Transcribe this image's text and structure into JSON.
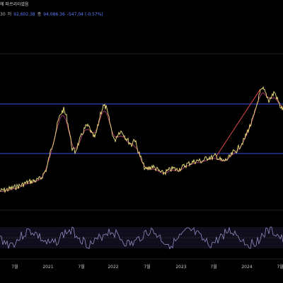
{
  "header": {
    "row1": "에 파르리아였음",
    "row2_prefix": "30",
    "high_label": "저",
    "high_value": "92,602.38",
    "close_label": "종",
    "close_value": "94,086.36",
    "change": "-547.04 (-0.57%)"
  },
  "colors": {
    "background": "#000000",
    "price_line": "#f2e27a",
    "ma_line": "#d04a8a",
    "support_resistance": "#3d4fe0",
    "trend_line": "#e04848",
    "oscillator": "#8e8ebf"
  },
  "chart_data": {
    "type": "line",
    "title": "",
    "xlabel": "",
    "ylabel": "",
    "x_tick_labels": [
      "7월",
      "2021",
      "7월",
      "2022",
      "7월",
      "2023",
      "7월",
      "2024",
      "7월"
    ],
    "x_tick_index": [
      21,
      68,
      115,
      160,
      208,
      256,
      302,
      349,
      396
    ],
    "series": [
      {
        "role": "price",
        "x": [
          0,
          10,
          20,
          30,
          38,
          46,
          52,
          58,
          62,
          66,
          70,
          74,
          78,
          82,
          86,
          90,
          94,
          98,
          102,
          106,
          110,
          114,
          118,
          122,
          126,
          130,
          134,
          138,
          142,
          146,
          150,
          154,
          158,
          162,
          166,
          170,
          174,
          178,
          182,
          186,
          190,
          194,
          198,
          202,
          206,
          210,
          215,
          220,
          225,
          230,
          235,
          240,
          245,
          250,
          255,
          260,
          265,
          270,
          275,
          280,
          285,
          290,
          295,
          300,
          305,
          310,
          315,
          320,
          325,
          330,
          335,
          340,
          345,
          350,
          355,
          360,
          365,
          368,
          372,
          376,
          380,
          384,
          388,
          392,
          396,
          400
        ],
        "y": [
          270,
          268,
          265,
          262,
          258,
          256,
          255,
          252,
          245,
          238,
          220,
          205,
          190,
          172,
          160,
          155,
          165,
          185,
          210,
          215,
          205,
          195,
          185,
          178,
          180,
          190,
          195,
          180,
          160,
          150,
          152,
          168,
          185,
          200,
          190,
          185,
          188,
          195,
          200,
          205,
          195,
          210,
          220,
          232,
          240,
          238,
          235,
          238,
          242,
          245,
          243,
          240,
          238,
          240,
          238,
          235,
          232,
          230,
          228,
          227,
          228,
          225,
          222,
          223,
          220,
          225,
          228,
          226,
          222,
          215,
          212,
          205,
          198,
          185,
          175,
          160,
          140,
          130,
          126,
          133,
          142,
          136,
          130,
          140,
          150,
          155
        ]
      }
    ],
    "horizontal_levels_y": [
      147,
      217
    ],
    "trend_line": {
      "x": [
        305,
        368
      ],
      "y": [
        222,
        126
      ]
    }
  }
}
